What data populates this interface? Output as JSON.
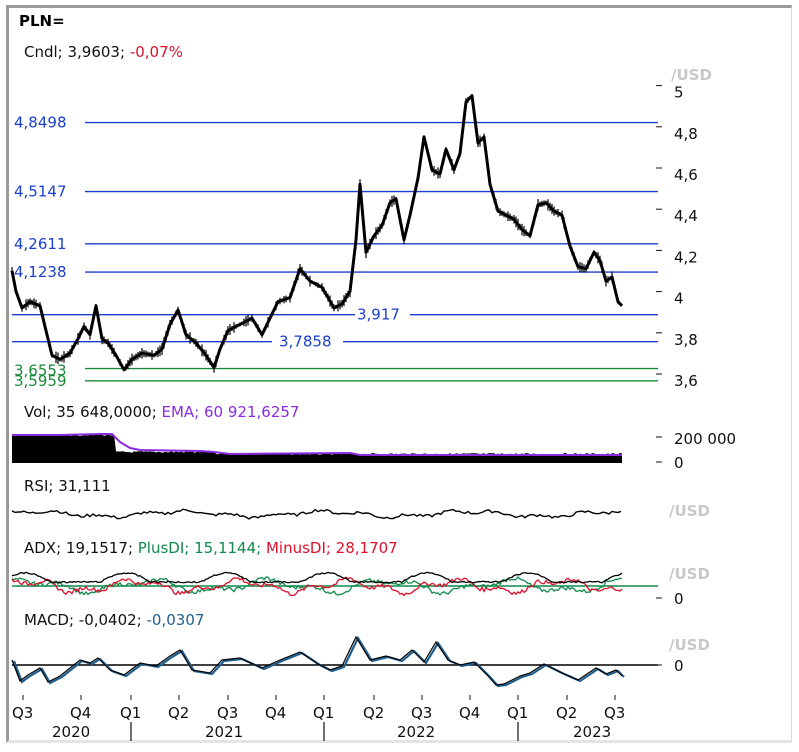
{
  "title": "PLN=",
  "panels": {
    "price": {
      "label": "Cndl; 3,9603; ",
      "change": "-0,07%",
      "unit": "/USD",
      "y_ticks": [
        "5",
        "4,8",
        "4,6",
        "4,4",
        "4,2",
        "4",
        "3,8",
        "3,6"
      ],
      "levels": [
        {
          "value": "4,8498",
          "color": "#1a3fd0"
        },
        {
          "value": "4,5147",
          "color": "#1a3fd0"
        },
        {
          "value": "4,2611",
          "color": "#1a3fd0"
        },
        {
          "value": "4,1238",
          "color": "#1a3fd0"
        },
        {
          "value": "3,917",
          "color": "#1a3fd0"
        },
        {
          "value": "3,7858",
          "color": "#1a3fd0"
        },
        {
          "value": "3,6553",
          "color": "#1a8a3a"
        },
        {
          "value": "3,5959",
          "color": "#1a8a3a"
        }
      ]
    },
    "volume": {
      "label": "Vol; 35 648,0000; ",
      "ema_label": "EMA; 60 921,6257",
      "y_ticks": [
        "200 000",
        "0"
      ]
    },
    "rsi": {
      "label": "RSI; 31,111",
      "unit": "/USD"
    },
    "adx": {
      "label": "ADX; 19,1517; ",
      "plus_label": "PlusDI; 15,1144; ",
      "minus_label": "MinusDI; 28,1707",
      "unit": "/USD",
      "y_ticks": [
        "0"
      ]
    },
    "macd": {
      "label": "MACD; -0,0402; ",
      "signal_label": "-0,0307",
      "unit": "/USD",
      "y_ticks": [
        "0"
      ]
    }
  },
  "x_axis": {
    "quarters": [
      "Q3",
      "Q4",
      "Q1",
      "Q2",
      "Q3",
      "Q4",
      "Q1",
      "Q2",
      "Q3",
      "Q4",
      "Q1",
      "Q2",
      "Q3"
    ],
    "years": [
      "2020",
      "2021",
      "2022",
      "2023"
    ]
  },
  "colors": {
    "resistance": "#1a3fd0",
    "support": "#1a8a3a",
    "negative": "#e0102a",
    "ema": "#8a2be2",
    "plus_di": "#0f8a4a",
    "minus_di": "#e0102a",
    "macd_signal": "#1f5f8f",
    "axis_unit": "#c8c8c8"
  },
  "chart_data": [
    {
      "type": "candlestick",
      "title": "PLN= Cndl",
      "ylabel": "/USD",
      "ylim": [
        3.55,
        5.05
      ],
      "x": [
        "2020-Q3",
        "2020-Q4",
        "2021-Q1",
        "2021-Q2",
        "2021-Q3",
        "2021-Q4",
        "2022-Q1",
        "2022-Q2",
        "2022-Q3",
        "2022-Q4",
        "2023-Q1",
        "2023-Q2",
        "2023-Q3"
      ],
      "approx_close": [
        3.92,
        3.78,
        3.72,
        3.85,
        3.78,
        3.9,
        4.05,
        4.3,
        4.55,
        4.75,
        4.35,
        4.2,
        3.96
      ],
      "last": 3.9603,
      "change_pct": -0.07,
      "horizontal_levels": [
        4.8498,
        4.5147,
        4.2611,
        4.1238,
        3.917,
        3.7858,
        3.6553,
        3.5959
      ],
      "grid": false
    },
    {
      "type": "bar",
      "title": "Vol",
      "last": 35648.0,
      "ema": 60921.6257,
      "y_ticks": [
        0,
        200000
      ]
    },
    {
      "type": "line",
      "title": "RSI",
      "last": 31.111
    },
    {
      "type": "line",
      "title": "ADX",
      "series": [
        {
          "name": "ADX",
          "last": 19.1517
        },
        {
          "name": "PlusDI",
          "last": 15.1144
        },
        {
          "name": "MinusDI",
          "last": 28.1707
        }
      ]
    },
    {
      "type": "line",
      "title": "MACD",
      "series": [
        {
          "name": "MACD",
          "last": -0.0402
        },
        {
          "name": "Signal",
          "last": -0.0307
        }
      ]
    }
  ]
}
